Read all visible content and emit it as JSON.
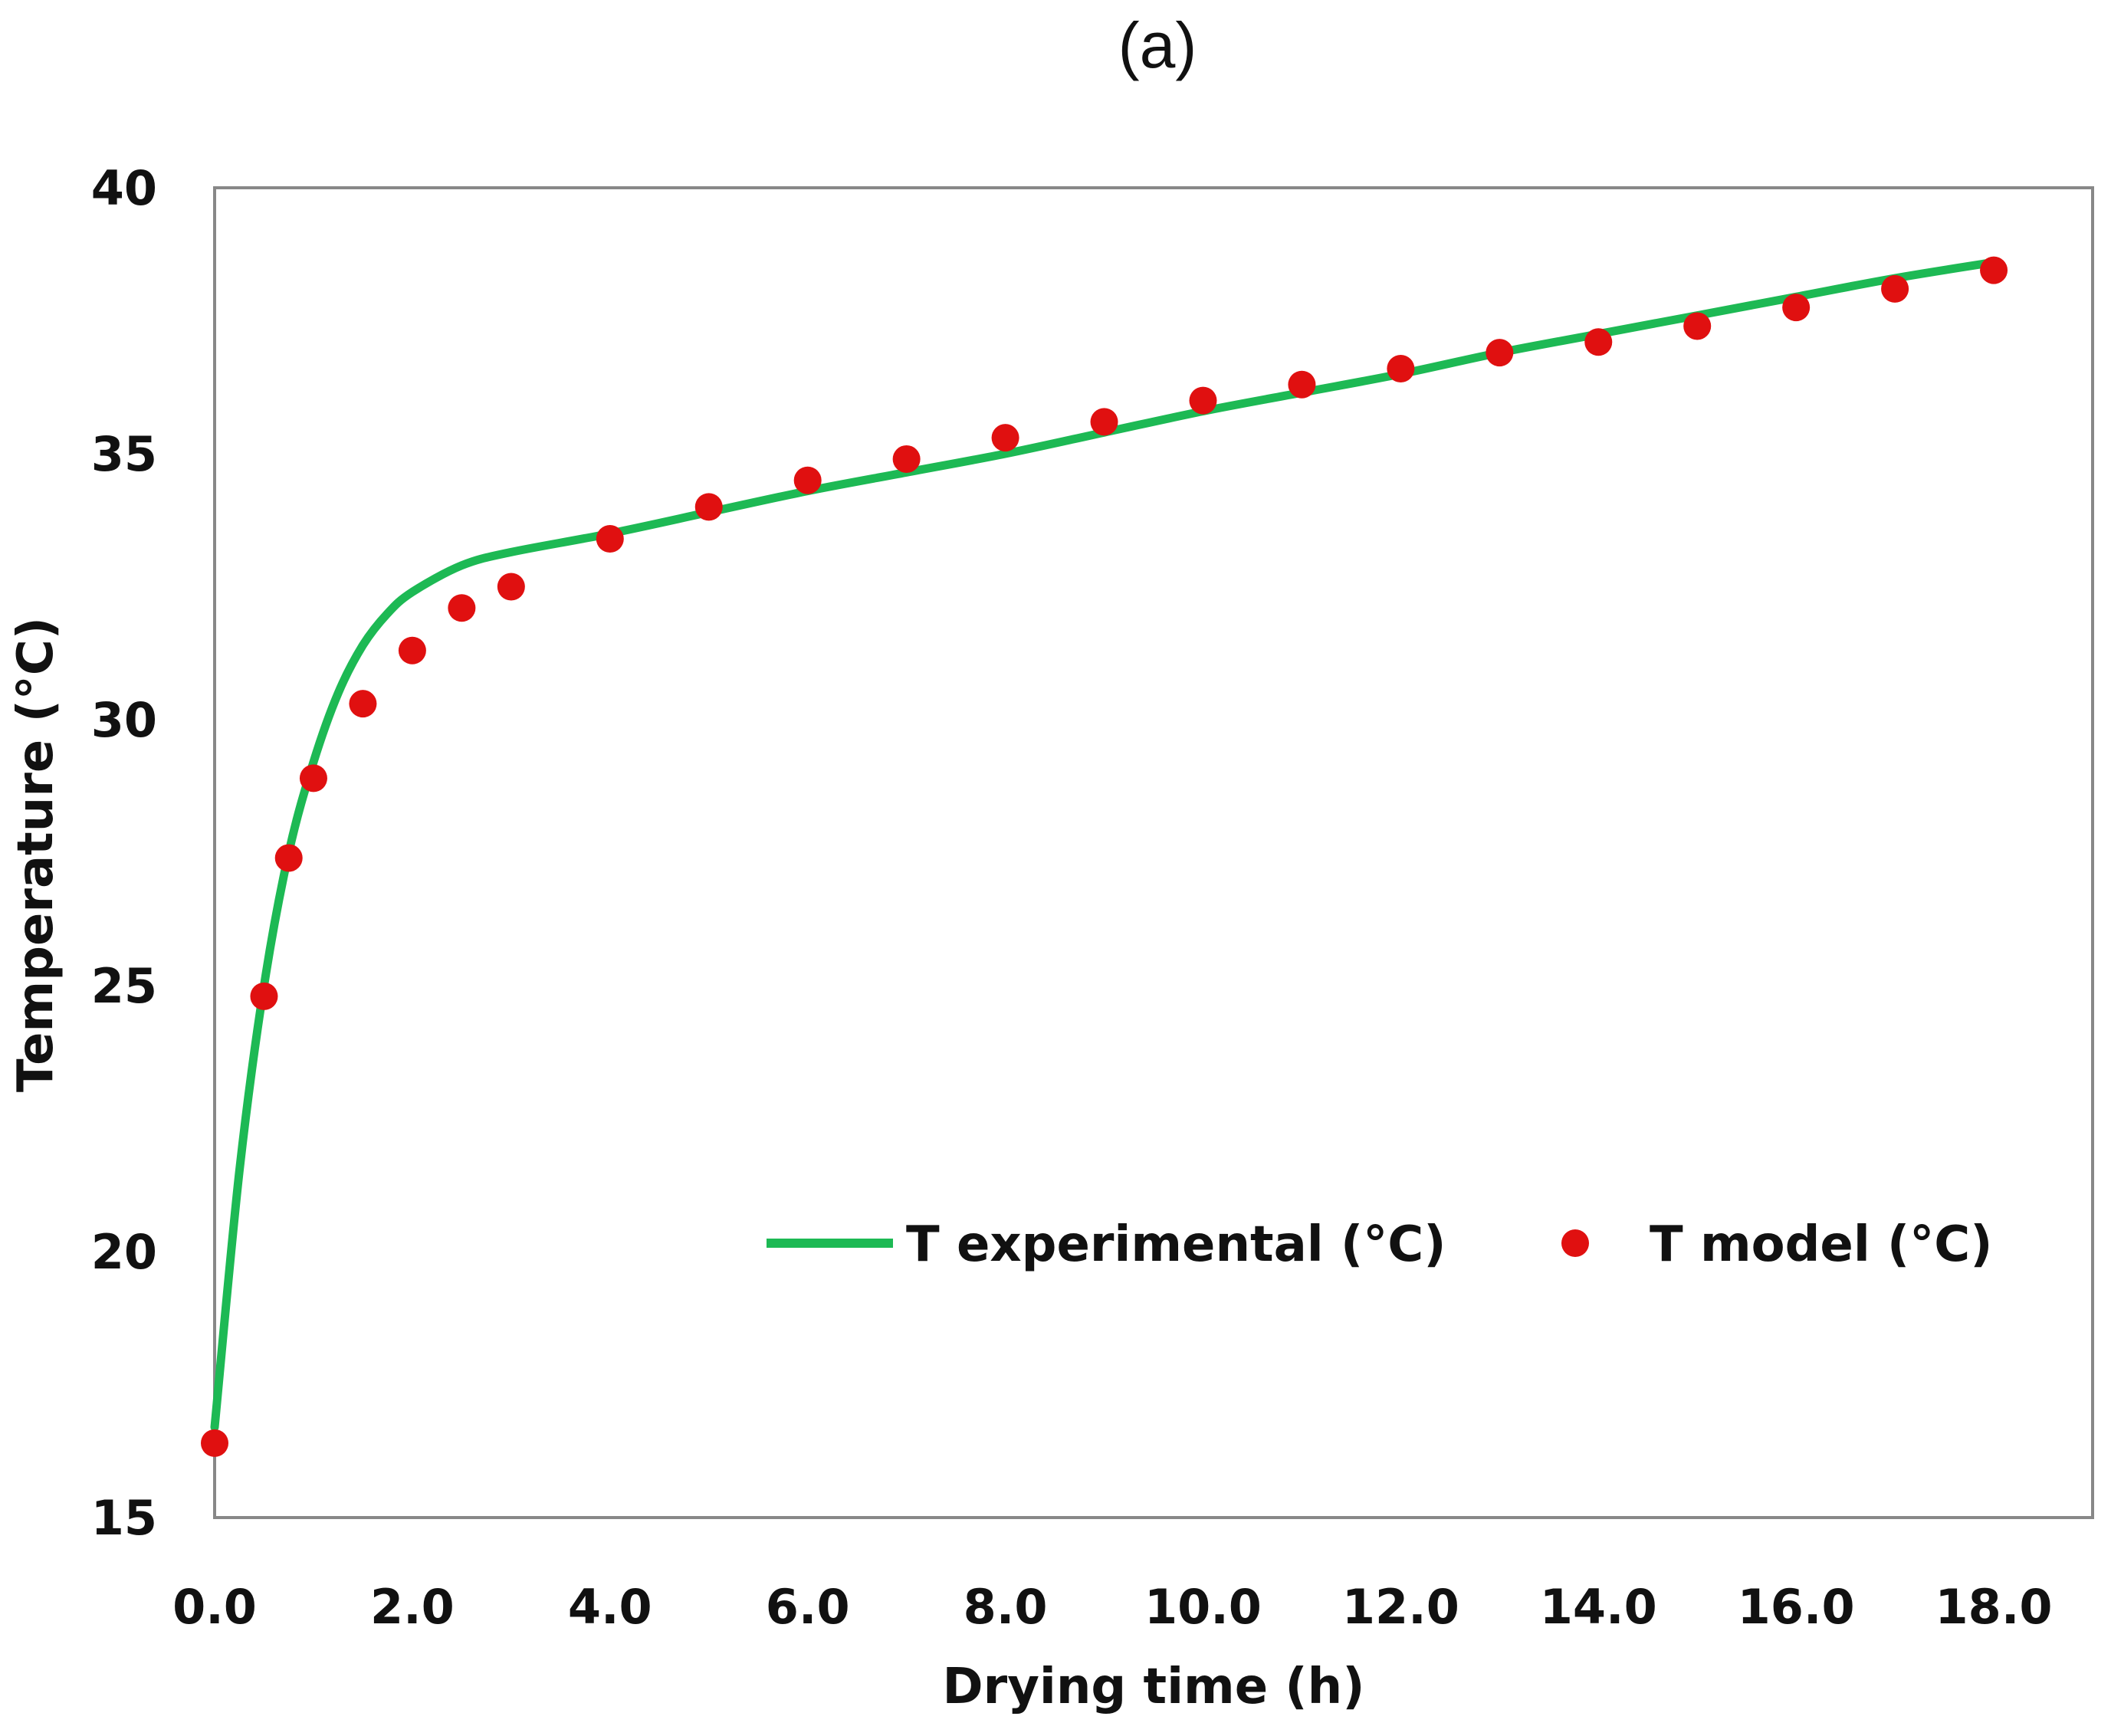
{
  "chart_data": {
    "type": "line",
    "panel_label": "(a)",
    "title": "",
    "xlabel": "Drying time (h)",
    "ylabel": "Temperature (°C)",
    "xlim": [
      0,
      19
    ],
    "ylim": [
      15,
      40
    ],
    "x_ticks": [
      "0.0",
      "2.0",
      "4.0",
      "6.0",
      "8.0",
      "10.0",
      "12.0",
      "14.0",
      "16.0",
      "18.0"
    ],
    "y_ticks": [
      "15",
      "20",
      "25",
      "30",
      "35",
      "40"
    ],
    "legend_position": "bottom-right",
    "series": [
      {
        "name": "T experimental (°C)",
        "kind": "line",
        "color": "#1db954",
        "x": [
          0,
          0.25,
          0.5,
          0.75,
          1.0,
          1.25,
          1.5,
          1.75,
          2.0,
          2.5,
          3.0,
          4.0,
          5.0,
          6.0,
          7.0,
          8.0,
          9.0,
          10.0,
          11.0,
          12.0,
          13.0,
          14.0,
          15.0,
          16.0,
          17.0,
          18.0
        ],
        "y": [
          16.7,
          21.5,
          25.0,
          27.5,
          29.2,
          30.5,
          31.4,
          32.0,
          32.4,
          32.9,
          33.15,
          33.5,
          33.9,
          34.3,
          34.65,
          35.0,
          35.4,
          35.8,
          36.15,
          36.5,
          36.9,
          37.25,
          37.6,
          37.95,
          38.3,
          38.6
        ]
      },
      {
        "name": "T model (°C)",
        "kind": "scatter",
        "color": "#e01010",
        "x": [
          0,
          0.5,
          0.75,
          1.0,
          1.5,
          2.0,
          2.5,
          3.0,
          4.0,
          5.0,
          6.0,
          7.0,
          8.0,
          9.0,
          10.0,
          11.0,
          12.0,
          13.0,
          14.0,
          15.0,
          16.0,
          17.0,
          18.0
        ],
        "y": [
          16.4,
          24.8,
          27.4,
          28.9,
          30.3,
          31.3,
          32.1,
          32.5,
          33.4,
          34.0,
          34.5,
          34.9,
          35.3,
          35.6,
          36.0,
          36.3,
          36.6,
          36.9,
          37.1,
          37.4,
          37.75,
          38.1,
          38.45
        ]
      }
    ]
  }
}
